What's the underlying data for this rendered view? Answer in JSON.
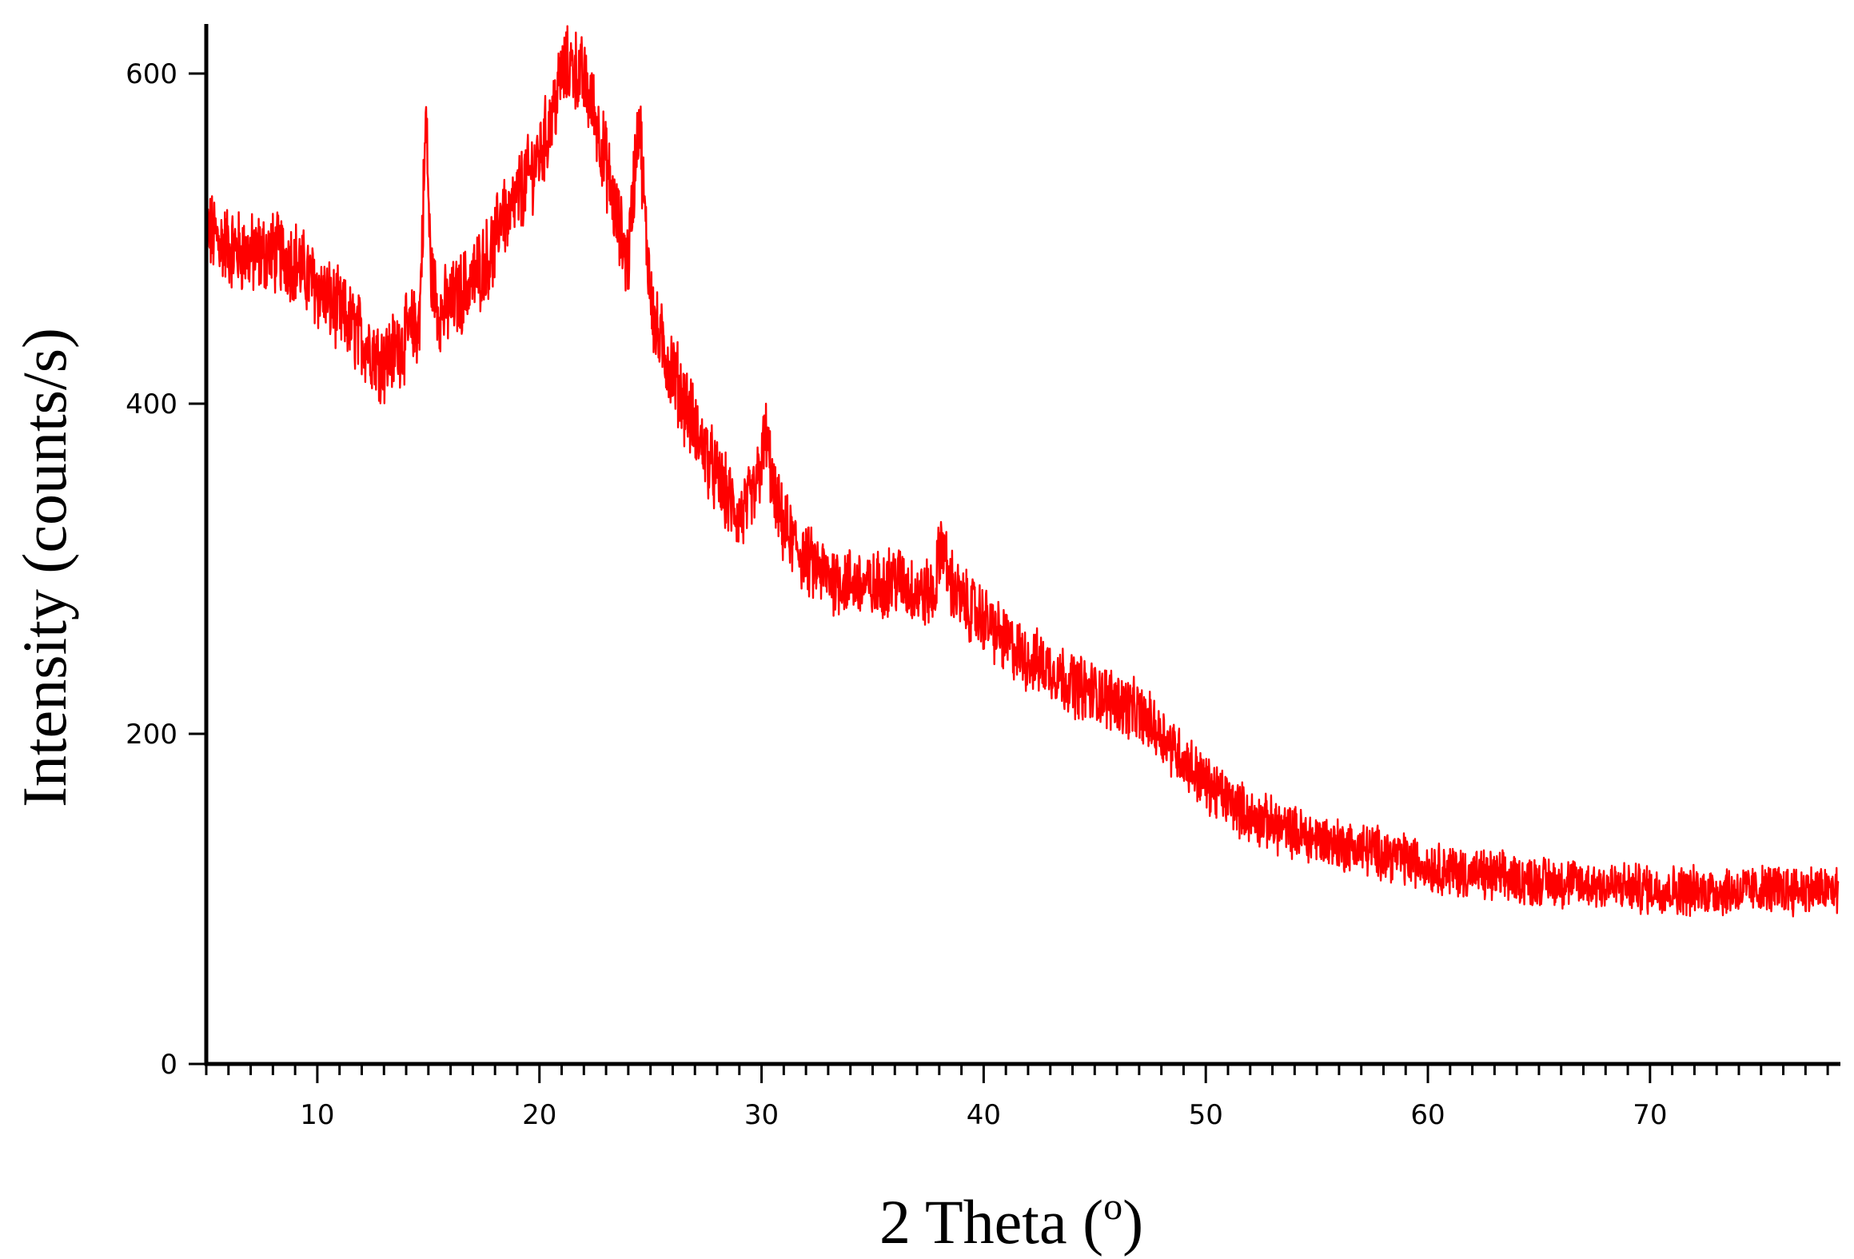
{
  "chart_data": {
    "type": "line",
    "title": "",
    "xlabel": "2 Theta (",
    "xlabel_superscript": "o",
    "xlabel_close": ")",
    "ylabel": "Intensity (counts/s)",
    "xlim": [
      5,
      78.5
    ],
    "ylim": [
      0,
      630
    ],
    "x_ticks": [
      10,
      20,
      30,
      40,
      50,
      60,
      70
    ],
    "x_tick_labels": [
      "10",
      "20",
      "30",
      "40",
      "50",
      "60",
      "70"
    ],
    "y_ticks": [
      0,
      200,
      400,
      600
    ],
    "y_tick_labels": [
      "0",
      "200",
      "400",
      "600"
    ],
    "x_minor_step": 1,
    "grid": false,
    "legend": "none",
    "series": [
      {
        "color": "#ff0000",
        "noise_amplitude": 22,
        "x": [
          5,
          6,
          7,
          8,
          9,
          10,
          11,
          12,
          13,
          14,
          14.6,
          14.9,
          15.1,
          15.5,
          16,
          17,
          18,
          18.3,
          18.6,
          19,
          20,
          20.5,
          21,
          21.5,
          22,
          22.5,
          23,
          23.5,
          24,
          24.3,
          24.5,
          24.8,
          25.2,
          26,
          27,
          28,
          29,
          29.7,
          30.2,
          30.6,
          31,
          32,
          33,
          34,
          35,
          36,
          37,
          37.8,
          38.1,
          38.4,
          39,
          40,
          41,
          42,
          43,
          44,
          45,
          46,
          47,
          48,
          49,
          50,
          52,
          54,
          56,
          58,
          60,
          62,
          64,
          66,
          68,
          70,
          72,
          74,
          76,
          78.5
        ],
        "y": [
          505,
          495,
          490,
          492,
          487,
          470,
          455,
          440,
          425,
          440,
          450,
          575,
          480,
          455,
          460,
          475,
          495,
          520,
          510,
          525,
          550,
          570,
          600,
          605,
          595,
          575,
          545,
          510,
          485,
          545,
          575,
          500,
          445,
          420,
          385,
          355,
          330,
          345,
          380,
          340,
          325,
          305,
          295,
          292,
          288,
          295,
          285,
          285,
          320,
          295,
          280,
          270,
          255,
          245,
          240,
          230,
          225,
          220,
          212,
          200,
          185,
          170,
          150,
          140,
          133,
          128,
          120,
          115,
          112,
          110,
          108,
          106,
          105,
          105,
          106,
          105
        ]
      }
    ]
  }
}
